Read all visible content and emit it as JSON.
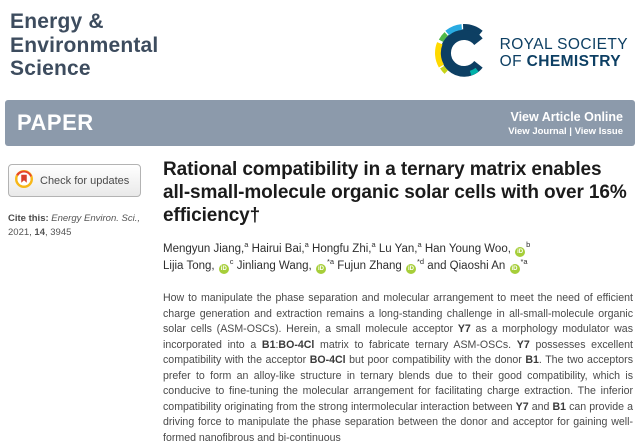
{
  "journal": {
    "title_line1": "Energy &",
    "title_line2": "Environmental",
    "title_line3": "Science"
  },
  "publisher": {
    "line1": "ROYAL SOCIETY",
    "line2_prefix": "OF ",
    "line2_bold": "CHEMISTRY"
  },
  "banner": {
    "label": "PAPER",
    "view_article_online": "View Article Online",
    "view_journal": "View Journal",
    "separator": " | ",
    "view_issue": "View Issue"
  },
  "sidebar": {
    "check_updates": "Check for updates",
    "cite_prefix": "Cite this: ",
    "cite_journal": "Energy Environ. Sci.,",
    "cite_year": " 2021, ",
    "cite_volume": "14",
    "cite_page": ", 3945"
  },
  "article": {
    "title": "Rational compatibility in a ternary matrix enables all-small-molecule organic solar cells with over 16% efficiency†",
    "authors": [
      {
        "name": "Mengyun Jiang,",
        "sup": "a",
        "orcid": false,
        "break_after": false
      },
      {
        "name": "Hairui Bai,",
        "sup": "a",
        "orcid": false,
        "break_after": false
      },
      {
        "name": "Hongfu Zhi,",
        "sup": "a",
        "orcid": false,
        "break_after": false
      },
      {
        "name": "Lu Yan,",
        "sup": "a",
        "orcid": false,
        "break_after": false
      },
      {
        "name": "Han Young Woo,",
        "sup": "b",
        "orcid": true,
        "break_after": true
      },
      {
        "name": "Lijia Tong,",
        "sup": "c",
        "orcid": true,
        "break_after": false
      },
      {
        "name": "Jinliang Wang,",
        "sup": "*a",
        "orcid": true,
        "break_after": false
      },
      {
        "name": "Fujun Zhang",
        "sup": "*d",
        "orcid": true,
        "break_after": false
      },
      {
        "name": "and Qiaoshi An",
        "sup": "*a",
        "orcid": true,
        "break_after": false
      }
    ],
    "orcid_icon_label": "iD",
    "abstract": [
      {
        "text": "How to manipulate the phase separation and molecular arrangement to meet the need of efficient charge generation and extraction remains a long-standing challenge in all-small-molecule organic solar cells (ASM-OSCs). Herein, a small molecule acceptor ",
        "bold": false
      },
      {
        "text": "Y7",
        "bold": true
      },
      {
        "text": " as a morphology modulator was incorporated into a ",
        "bold": false
      },
      {
        "text": "B1",
        "bold": true
      },
      {
        "text": ":",
        "bold": false
      },
      {
        "text": "BO-4Cl",
        "bold": true
      },
      {
        "text": " matrix to fabricate ternary ASM-OSCs. ",
        "bold": false
      },
      {
        "text": "Y7",
        "bold": true
      },
      {
        "text": " possesses excellent compatibility with the acceptor ",
        "bold": false
      },
      {
        "text": "BO-4Cl",
        "bold": true
      },
      {
        "text": " but poor compatibility with the donor ",
        "bold": false
      },
      {
        "text": "B1",
        "bold": true
      },
      {
        "text": ". The two acceptors prefer to form an alloy-like structure in ternary blends due to their good compatibility, which is conducive to fine-tuning the molecular arrangement for facilitating charge extraction. The inferior compatibility originating from the strong intermolecular interaction between ",
        "bold": false
      },
      {
        "text": "Y7",
        "bold": true
      },
      {
        "text": " and ",
        "bold": false
      },
      {
        "text": "B1",
        "bold": true
      },
      {
        "text": " can provide a driving force to manipulate the phase separation between the donor and acceptor for gaining well-formed nanofibrous and bi-continuous",
        "bold": false
      }
    ]
  },
  "colors": {
    "banner_bg": "#8c9aab",
    "journal_title": "#3d4c5e",
    "rsc_navy": "#0d3f63",
    "rsc_light_blue": "#29abe2",
    "rsc_green": "#50b848",
    "rsc_yellow_green": "#c8d419",
    "rsc_yellow": "#ffd900",
    "rsc_teal": "#00b1a9",
    "orcid_green": "#a6ce39",
    "crossmark_red": "#e8452c",
    "crossmark_yellow": "#f7b718"
  }
}
